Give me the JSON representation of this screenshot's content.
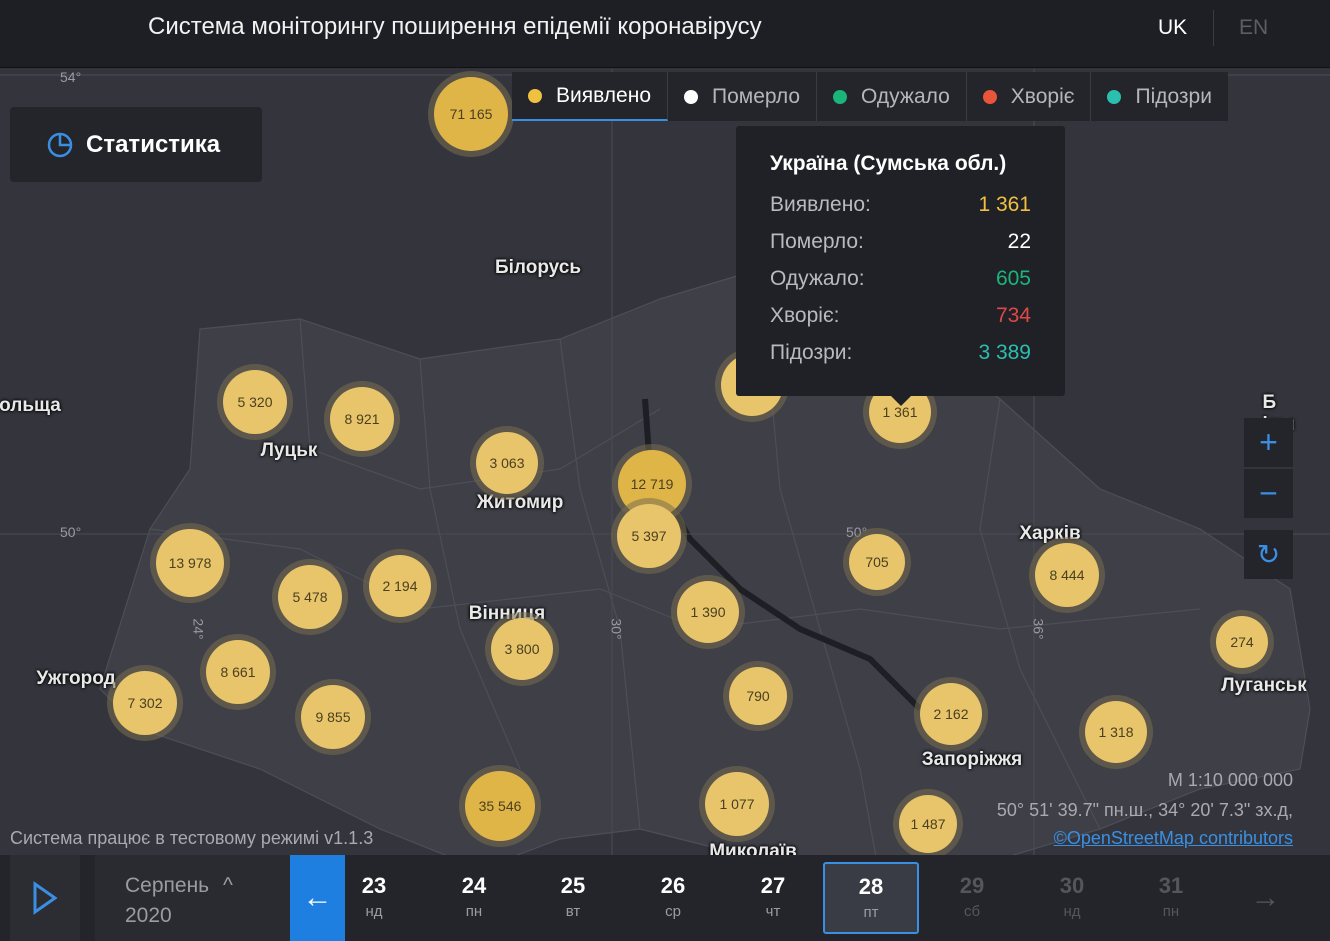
{
  "header": {
    "title": "Система моніторингу поширення епідемії коронавірусу",
    "lang_uk": "UK",
    "lang_en": "EN"
  },
  "tabs": [
    {
      "label": "Виявлено",
      "color": "#f0c040"
    },
    {
      "label": "Померло",
      "color": "#ffffff"
    },
    {
      "label": "Одужало",
      "color": "#1bb57a"
    },
    {
      "label": "Хворіє",
      "color": "#e8553a"
    },
    {
      "label": "Підозри",
      "color": "#2bbfb0"
    }
  ],
  "stats_button": "Статистика",
  "tooltip": {
    "title": "Україна (Сумська обл.)",
    "rows": [
      {
        "label": "Виявлено:",
        "value": "1 361",
        "color": "#f0c040"
      },
      {
        "label": "Померло:",
        "value": "22",
        "color": "#ffffff"
      },
      {
        "label": "Одужало:",
        "value": "605",
        "color": "#1bb57a"
      },
      {
        "label": "Хворіє:",
        "value": "734",
        "color": "#e04848"
      },
      {
        "label": "Підозри:",
        "value": "3 389",
        "color": "#2bbfb0"
      }
    ]
  },
  "markers": [
    "71 165",
    "5 320",
    "8 921",
    "3 063",
    "12 719",
    "5 397",
    "",
    "1 361",
    "13 978",
    "5 478",
    "2 194",
    "1 390",
    "705",
    "8 444",
    "274",
    "3 800",
    "8 661",
    "7 302",
    "9 855",
    "790",
    "2 162",
    "1 318",
    "35 546",
    "1 077",
    "1 487"
  ],
  "cities": [
    "Білорусь",
    "ольща",
    "Луцьк",
    "Житомир",
    "Вінниця",
    "Ужгород",
    "Харків",
    "Луганськ",
    "Запоріжжя",
    "Миколаїв",
    "Б   ісы"
  ],
  "grid_labels": [
    "54°",
    "50°",
    "50°",
    "24°",
    "30°",
    "36°"
  ],
  "footer": {
    "mode": "Система працює в тестовому режимі v1.1.3",
    "scale": "М 1:10 000 000",
    "coords": "50° 51' 39.7\" пн.ш., 34° 20' 7.3\" зх.д,",
    "osm": "©OpenStreetMap contributors"
  },
  "timeline": {
    "month": "Серпень",
    "year": "2020",
    "days": [
      {
        "n": "23",
        "w": "нд"
      },
      {
        "n": "24",
        "w": "пн"
      },
      {
        "n": "25",
        "w": "вт"
      },
      {
        "n": "26",
        "w": "ср"
      },
      {
        "n": "27",
        "w": "чт"
      },
      {
        "n": "28",
        "w": "пт"
      },
      {
        "n": "29",
        "w": "сб"
      },
      {
        "n": "30",
        "w": "нд"
      },
      {
        "n": "31",
        "w": "пн"
      }
    ]
  }
}
